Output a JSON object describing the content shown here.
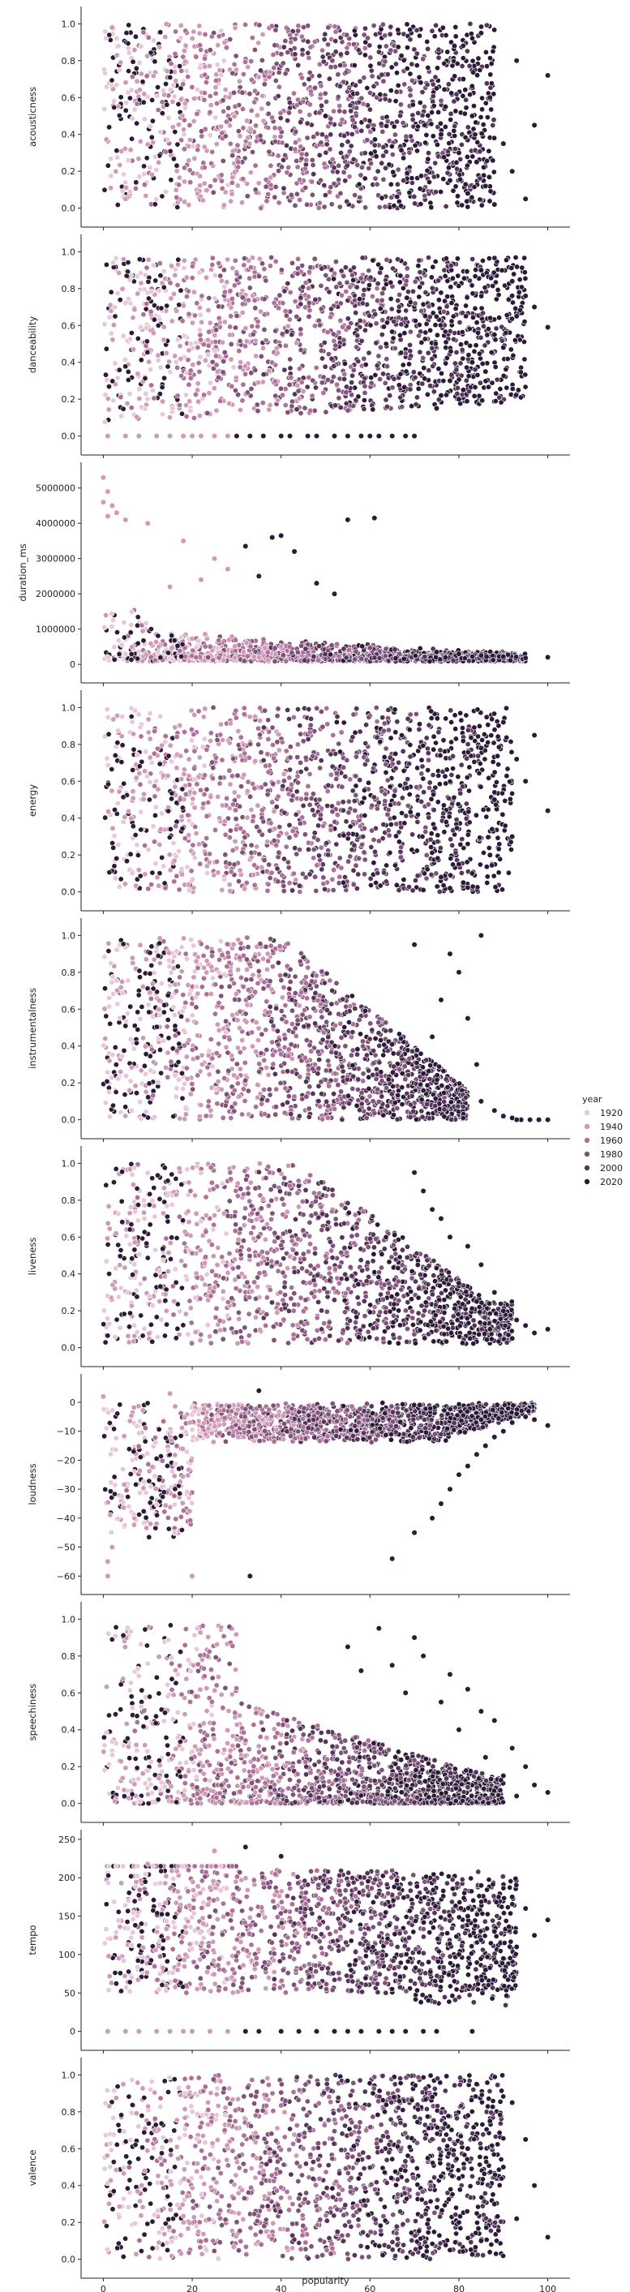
{
  "chart_data": {
    "type": "scatter",
    "xlabel": "popularity",
    "xlim": [
      -5,
      105
    ],
    "xticks": [
      0,
      20,
      40,
      60,
      80,
      100
    ],
    "hue": {
      "title": "year",
      "range": [
        1920,
        2020
      ],
      "legend_values": [
        "1920",
        "1940",
        "1960",
        "1980",
        "2000",
        "2020"
      ],
      "colors": [
        "#e7c8d8",
        "#cf9ab5",
        "#ad7199",
        "#7f527a",
        "#553459",
        "#2b1a38"
      ]
    },
    "legend_placement": "right",
    "grid": false,
    "panels": [
      {
        "ylabel": "acousticness",
        "ylim": [
          -0.05,
          1.05
        ],
        "yticks": [
          0.0,
          0.2,
          0.4,
          0.6,
          0.8,
          1.0
        ],
        "ytick_labels": [
          "0.0",
          "0.2",
          "0.4",
          "0.6",
          "0.8",
          "1.0"
        ],
        "points": [
          [
            100,
            0.72
          ],
          [
            97,
            0.45
          ],
          [
            95,
            0.05
          ],
          [
            93,
            0.8
          ],
          [
            92,
            0.2
          ],
          [
            90,
            0.35
          ],
          [
            88,
            0.02
          ],
          [
            87,
            0.6
          ],
          [
            86,
            0.12
          ],
          [
            85,
            0.95
          ],
          [
            84,
            0.25
          ],
          [
            83,
            0.5
          ],
          [
            82,
            0.08
          ],
          [
            81,
            0.7
          ],
          [
            80,
            0.3
          ],
          [
            79,
            0.88
          ],
          [
            78,
            0.15
          ],
          [
            77,
            0.55
          ],
          [
            76,
            0.4
          ],
          [
            75,
            0.65
          ],
          [
            50,
            0.5
          ],
          [
            5,
            0.05
          ],
          [
            2,
            0.98
          ]
        ]
      },
      {
        "ylabel": "danceability",
        "ylim": [
          -0.05,
          1.05
        ],
        "yticks": [
          0.0,
          0.2,
          0.4,
          0.6,
          0.8,
          1.0
        ],
        "ytick_labels": [
          "0.0",
          "0.2",
          "0.4",
          "0.6",
          "0.8",
          "1.0"
        ],
        "points": [
          [
            100,
            0.59
          ],
          [
            97,
            0.7
          ],
          [
            95,
            0.76
          ],
          [
            93,
            0.65
          ],
          [
            92,
            0.84
          ],
          [
            90,
            0.48
          ],
          [
            88,
            0.55
          ],
          [
            86,
            0.35
          ],
          [
            85,
            0.9
          ],
          [
            83,
            0.4
          ],
          [
            81,
            0.25
          ],
          [
            80,
            0.2
          ],
          [
            78,
            0.3
          ],
          [
            76,
            0.22
          ],
          [
            75,
            0.15
          ],
          [
            1,
            0.0
          ],
          [
            5,
            0.0
          ],
          [
            8,
            0.0
          ],
          [
            12,
            0.0
          ],
          [
            15,
            0.0
          ],
          [
            18,
            0.0
          ],
          [
            20,
            0.0
          ],
          [
            22,
            0.0
          ],
          [
            25,
            0.0
          ],
          [
            28,
            0.0
          ],
          [
            30,
            0.0
          ],
          [
            33,
            0.0
          ],
          [
            36,
            0.0
          ],
          [
            40,
            0.0
          ],
          [
            42,
            0.0
          ],
          [
            46,
            0.0
          ],
          [
            48,
            0.0
          ],
          [
            52,
            0.0
          ],
          [
            55,
            0.0
          ],
          [
            58,
            0.0
          ],
          [
            60,
            0.0
          ],
          [
            62,
            0.0
          ],
          [
            65,
            0.0
          ],
          [
            68,
            0.0
          ],
          [
            70,
            0.0
          ]
        ]
      },
      {
        "ylabel": "duration_ms",
        "ylim": [
          -250000,
          5500000
        ],
        "yticks": [
          0,
          1000000,
          2000000,
          3000000,
          4000000,
          5000000
        ],
        "ytick_labels": [
          "0",
          "1000000",
          "2000000",
          "3000000",
          "4000000",
          "5000000"
        ],
        "points": [
          [
            0,
            5300000
          ],
          [
            1,
            4900000
          ],
          [
            2,
            4500000
          ],
          [
            3,
            4300000
          ],
          [
            0,
            4600000
          ],
          [
            1,
            4200000
          ],
          [
            5,
            4100000
          ],
          [
            10,
            4000000
          ],
          [
            55,
            4100000
          ],
          [
            61,
            4150000
          ],
          [
            40,
            3650000
          ],
          [
            38,
            3600000
          ],
          [
            32,
            3350000
          ],
          [
            43,
            3200000
          ],
          [
            18,
            3500000
          ],
          [
            25,
            3000000
          ],
          [
            28,
            2700000
          ],
          [
            22,
            2400000
          ],
          [
            35,
            2500000
          ],
          [
            15,
            2200000
          ],
          [
            48,
            2300000
          ],
          [
            52,
            2000000
          ],
          [
            100,
            200000
          ],
          [
            95,
            180000
          ],
          [
            90,
            220000
          ],
          [
            85,
            250000
          ],
          [
            80,
            300000
          ],
          [
            75,
            350000
          ]
        ]
      },
      {
        "ylabel": "energy",
        "ylim": [
          -0.05,
          1.05
        ],
        "yticks": [
          0.0,
          0.2,
          0.4,
          0.6,
          0.8,
          1.0
        ],
        "ytick_labels": [
          "0.0",
          "0.2",
          "0.4",
          "0.6",
          "0.8",
          "1.0"
        ],
        "points": [
          [
            100,
            0.44
          ],
          [
            97,
            0.85
          ],
          [
            95,
            0.6
          ],
          [
            93,
            0.72
          ],
          [
            92,
            0.3
          ],
          [
            90,
            0.92
          ],
          [
            88,
            0.5
          ],
          [
            87,
            0.2
          ],
          [
            85,
            0.78
          ],
          [
            83,
            0.1
          ],
          [
            81,
            0.05
          ],
          [
            80,
            0.15
          ],
          [
            78,
            0.02
          ],
          [
            76,
            0.08
          ],
          [
            72,
            0.01
          ]
        ]
      },
      {
        "ylabel": "instrumentalness",
        "ylim": [
          -0.05,
          1.05
        ],
        "yticks": [
          0.0,
          0.2,
          0.4,
          0.6,
          0.8,
          1.0
        ],
        "ytick_labels": [
          "0.0",
          "0.2",
          "0.4",
          "0.6",
          "0.8",
          "1.0"
        ],
        "points": [
          [
            100,
            0.0
          ],
          [
            98,
            0.0
          ],
          [
            96,
            0.0
          ],
          [
            94,
            0.0
          ],
          [
            93,
            0.0
          ],
          [
            92,
            0.01
          ],
          [
            90,
            0.02
          ],
          [
            88,
            0.05
          ],
          [
            85,
            0.1
          ],
          [
            84,
            0.3
          ],
          [
            82,
            0.55
          ],
          [
            80,
            0.8
          ],
          [
            85,
            1.0
          ],
          [
            78,
            0.9
          ],
          [
            76,
            0.65
          ],
          [
            74,
            0.45
          ],
          [
            72,
            0.25
          ],
          [
            70,
            0.95
          ]
        ]
      },
      {
        "ylabel": "liveness",
        "ylim": [
          -0.05,
          1.05
        ],
        "yticks": [
          0.0,
          0.2,
          0.4,
          0.6,
          0.8,
          1.0
        ],
        "ytick_labels": [
          "0.0",
          "0.2",
          "0.4",
          "0.6",
          "0.8",
          "1.0"
        ],
        "points": [
          [
            100,
            0.1
          ],
          [
            97,
            0.08
          ],
          [
            95,
            0.12
          ],
          [
            93,
            0.15
          ],
          [
            92,
            0.05
          ],
          [
            90,
            0.2
          ],
          [
            88,
            0.3
          ],
          [
            87,
            0.1
          ],
          [
            85,
            0.45
          ],
          [
            84,
            0.25
          ],
          [
            82,
            0.55
          ],
          [
            80,
            0.35
          ],
          [
            78,
            0.6
          ],
          [
            76,
            0.7
          ],
          [
            74,
            0.75
          ],
          [
            72,
            0.85
          ],
          [
            70,
            0.95
          ]
        ]
      },
      {
        "ylabel": "loudness",
        "ylim": [
          -63,
          7
        ],
        "yticks": [
          -60,
          -50,
          -40,
          -30,
          -20,
          -10,
          0
        ],
        "ytick_labels": [
          "−60",
          "−50",
          "−40",
          "−30",
          "−20",
          "−10",
          "0"
        ],
        "points": [
          [
            100,
            -8
          ],
          [
            97,
            -6
          ],
          [
            95,
            -5
          ],
          [
            93,
            -4
          ],
          [
            92,
            -7
          ],
          [
            90,
            -10
          ],
          [
            88,
            -12
          ],
          [
            86,
            -15
          ],
          [
            85,
            -6
          ],
          [
            84,
            -18
          ],
          [
            82,
            -22
          ],
          [
            80,
            -25
          ],
          [
            78,
            -30
          ],
          [
            76,
            -35
          ],
          [
            74,
            -40
          ],
          [
            70,
            -45
          ],
          [
            65,
            -54
          ],
          [
            33,
            -60
          ],
          [
            20,
            -60
          ],
          [
            1,
            -60
          ],
          [
            1,
            -55
          ],
          [
            2,
            -50
          ],
          [
            35,
            4
          ],
          [
            15,
            3
          ],
          [
            0,
            2
          ]
        ]
      },
      {
        "ylabel": "speechiness",
        "ylim": [
          -0.05,
          1.05
        ],
        "yticks": [
          0.0,
          0.2,
          0.4,
          0.6,
          0.8,
          1.0
        ],
        "ytick_labels": [
          "0.0",
          "0.2",
          "0.4",
          "0.6",
          "0.8",
          "1.0"
        ],
        "points": [
          [
            100,
            0.06
          ],
          [
            97,
            0.1
          ],
          [
            95,
            0.2
          ],
          [
            93,
            0.04
          ],
          [
            92,
            0.3
          ],
          [
            90,
            0.15
          ],
          [
            88,
            0.45
          ],
          [
            86,
            0.25
          ],
          [
            85,
            0.5
          ],
          [
            82,
            0.62
          ],
          [
            80,
            0.4
          ],
          [
            78,
            0.7
          ],
          [
            76,
            0.55
          ],
          [
            72,
            0.8
          ],
          [
            70,
            0.9
          ],
          [
            68,
            0.6
          ],
          [
            65,
            0.75
          ],
          [
            62,
            0.95
          ],
          [
            58,
            0.72
          ],
          [
            55,
            0.85
          ]
        ]
      },
      {
        "ylabel": "tempo",
        "ylim": [
          -12,
          252
        ],
        "yticks": [
          0,
          50,
          100,
          150,
          200,
          250
        ],
        "ytick_labels": [
          "0",
          "50",
          "100",
          "150",
          "200",
          "250"
        ],
        "points": [
          [
            100,
            145
          ],
          [
            97,
            125
          ],
          [
            95,
            160
          ],
          [
            93,
            110
          ],
          [
            92,
            175
          ],
          [
            90,
            95
          ],
          [
            88,
            130
          ],
          [
            86,
            80
          ],
          [
            85,
            190
          ],
          [
            84,
            70
          ],
          [
            82,
            150
          ],
          [
            80,
            100
          ],
          [
            32,
            240
          ],
          [
            40,
            228
          ],
          [
            25,
            235
          ],
          [
            10,
            218
          ],
          [
            1,
            0
          ],
          [
            5,
            0
          ],
          [
            8,
            0
          ],
          [
            12,
            0
          ],
          [
            15,
            0
          ],
          [
            18,
            0
          ],
          [
            20,
            0
          ],
          [
            24,
            0
          ],
          [
            28,
            0
          ],
          [
            32,
            0
          ],
          [
            35,
            0
          ],
          [
            40,
            0
          ],
          [
            44,
            0
          ],
          [
            48,
            0
          ],
          [
            52,
            0
          ],
          [
            55,
            0
          ],
          [
            58,
            0
          ],
          [
            62,
            0
          ],
          [
            65,
            0
          ],
          [
            68,
            0
          ],
          [
            72,
            0
          ],
          [
            75,
            0
          ],
          [
            83,
            0
          ]
        ]
      },
      {
        "ylabel": "valence",
        "ylim": [
          -0.05,
          1.05
        ],
        "yticks": [
          0.0,
          0.2,
          0.4,
          0.6,
          0.8,
          1.0
        ],
        "ytick_labels": [
          "0.0",
          "0.2",
          "0.4",
          "0.6",
          "0.8",
          "1.0"
        ],
        "points": [
          [
            100,
            0.12
          ],
          [
            97,
            0.4
          ],
          [
            95,
            0.65
          ],
          [
            93,
            0.22
          ],
          [
            92,
            0.85
          ],
          [
            90,
            0.5
          ],
          [
            88,
            0.3
          ],
          [
            87,
            0.75
          ],
          [
            85,
            0.1
          ],
          [
            84,
            0.95
          ],
          [
            82,
            0.6
          ],
          [
            80,
            0.2
          ],
          [
            78,
            0.05
          ],
          [
            76,
            0.45
          ],
          [
            74,
            0.88
          ],
          [
            72,
            0.02
          ]
        ]
      }
    ]
  }
}
